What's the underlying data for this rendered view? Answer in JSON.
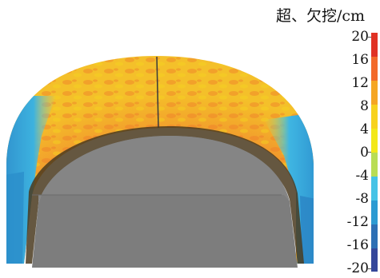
{
  "legend": {
    "title": "超、欠挖/cm",
    "ticks": [
      "20",
      "16",
      "12",
      "8",
      "4",
      "0",
      "-4",
      "-8",
      "-12",
      "-16",
      "-20"
    ]
  },
  "colorbar": {
    "colors": [
      "#e03224",
      "#f26a2a",
      "#f5a623",
      "#f7d21e",
      "#f2e81a",
      "#b9dd55",
      "#46c3e6",
      "#2c9ad2",
      "#2d6fb4",
      "#34479a"
    ]
  }
}
